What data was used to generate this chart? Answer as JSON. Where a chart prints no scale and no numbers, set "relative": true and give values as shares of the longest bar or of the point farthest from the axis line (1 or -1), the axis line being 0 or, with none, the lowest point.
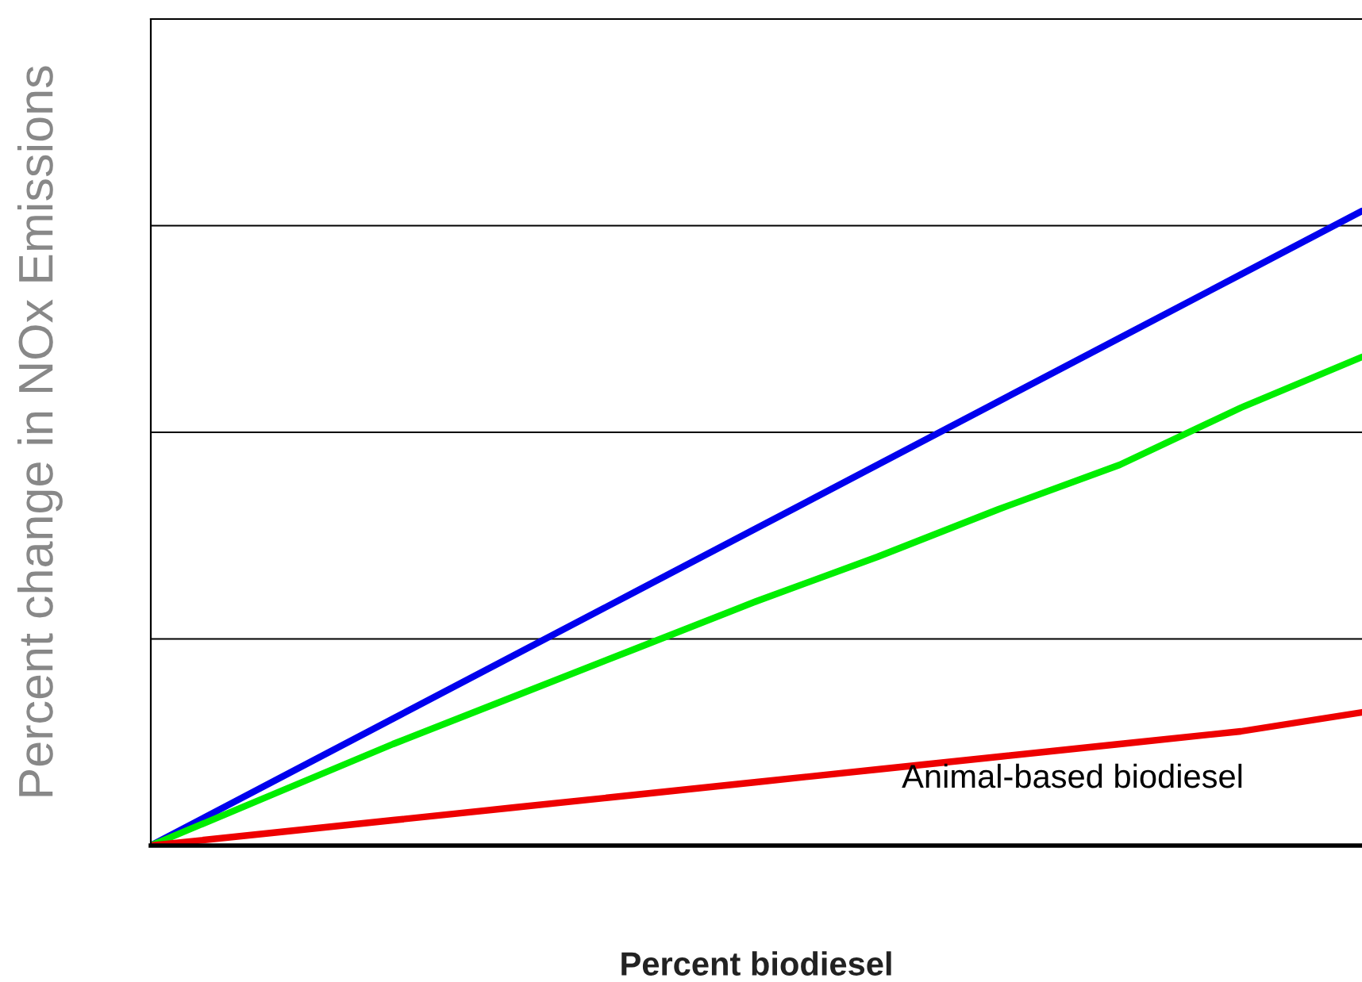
{
  "chart_data": {
    "type": "line",
    "relative": true,
    "xlabel": "Percent biodiesel",
    "ylabel": "Percent change in NOx Emissions",
    "categories": [
      null,
      null,
      null,
      null,
      null,
      null,
      null,
      null,
      null,
      null,
      null
    ],
    "series": [
      {
        "color": "#0000ee",
        "values": [
          0,
          0.1,
          0.2,
          0.3,
          0.4,
          0.5,
          0.6,
          0.7,
          0.8,
          0.9,
          1.0
        ]
      },
      {
        "color": "#00ee00",
        "values": [
          0,
          0.08,
          0.16,
          0.235,
          0.31,
          0.385,
          0.455,
          0.53,
          0.6,
          0.69,
          0.77
        ]
      },
      {
        "color": "#ee0000",
        "values": [
          0,
          0.02,
          0.04,
          0.06,
          0.08,
          0.1,
          0.12,
          0.14,
          0.16,
          0.18,
          0.21
        ]
      }
    ],
    "annotations": [
      "Animal-based biodiesel"
    ],
    "grid": "y",
    "tick_labels": false
  }
}
